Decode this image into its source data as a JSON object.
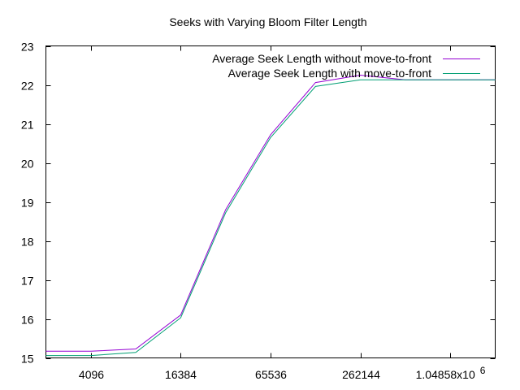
{
  "chart_data": {
    "type": "line",
    "title": "Seeks with Varying Bloom Filter Length",
    "xlabel": "",
    "ylabel": "",
    "x_scale": "log2",
    "x": [
      2048,
      4096,
      8192,
      16384,
      32768,
      65536,
      131072,
      262144,
      524288,
      1048576,
      2097152
    ],
    "xlim": [
      2048,
      2097152
    ],
    "ylim": [
      15,
      23
    ],
    "x_ticks": [
      {
        "value": 4096,
        "label": "4096"
      },
      {
        "value": 16384,
        "label": "16384"
      },
      {
        "value": 65536,
        "label": "65536"
      },
      {
        "value": 262144,
        "label": "262144"
      },
      {
        "value": 1048576,
        "label": "1.04858x10",
        "exponent": "6"
      }
    ],
    "y_ticks": [
      {
        "value": 15,
        "label": "15"
      },
      {
        "value": 16,
        "label": "16"
      },
      {
        "value": 17,
        "label": "17"
      },
      {
        "value": 18,
        "label": "18"
      },
      {
        "value": 19,
        "label": "19"
      },
      {
        "value": 20,
        "label": "20"
      },
      {
        "value": 21,
        "label": "21"
      },
      {
        "value": 22,
        "label": "22"
      },
      {
        "value": 23,
        "label": "23"
      }
    ],
    "grid": false,
    "legend_position": "top-right",
    "series": [
      {
        "name": "Average Seek Length without move-to-front",
        "color": "#9400d3",
        "values": [
          15.17,
          15.17,
          15.23,
          16.1,
          18.8,
          20.72,
          22.06,
          22.25,
          22.13,
          22.13,
          22.13
        ]
      },
      {
        "name": "Average Seek Length with move-to-front",
        "color": "#009e73",
        "values": [
          15.06,
          15.06,
          15.14,
          16.03,
          18.72,
          20.65,
          21.96,
          22.13,
          22.13,
          22.13,
          22.13
        ]
      }
    ]
  }
}
